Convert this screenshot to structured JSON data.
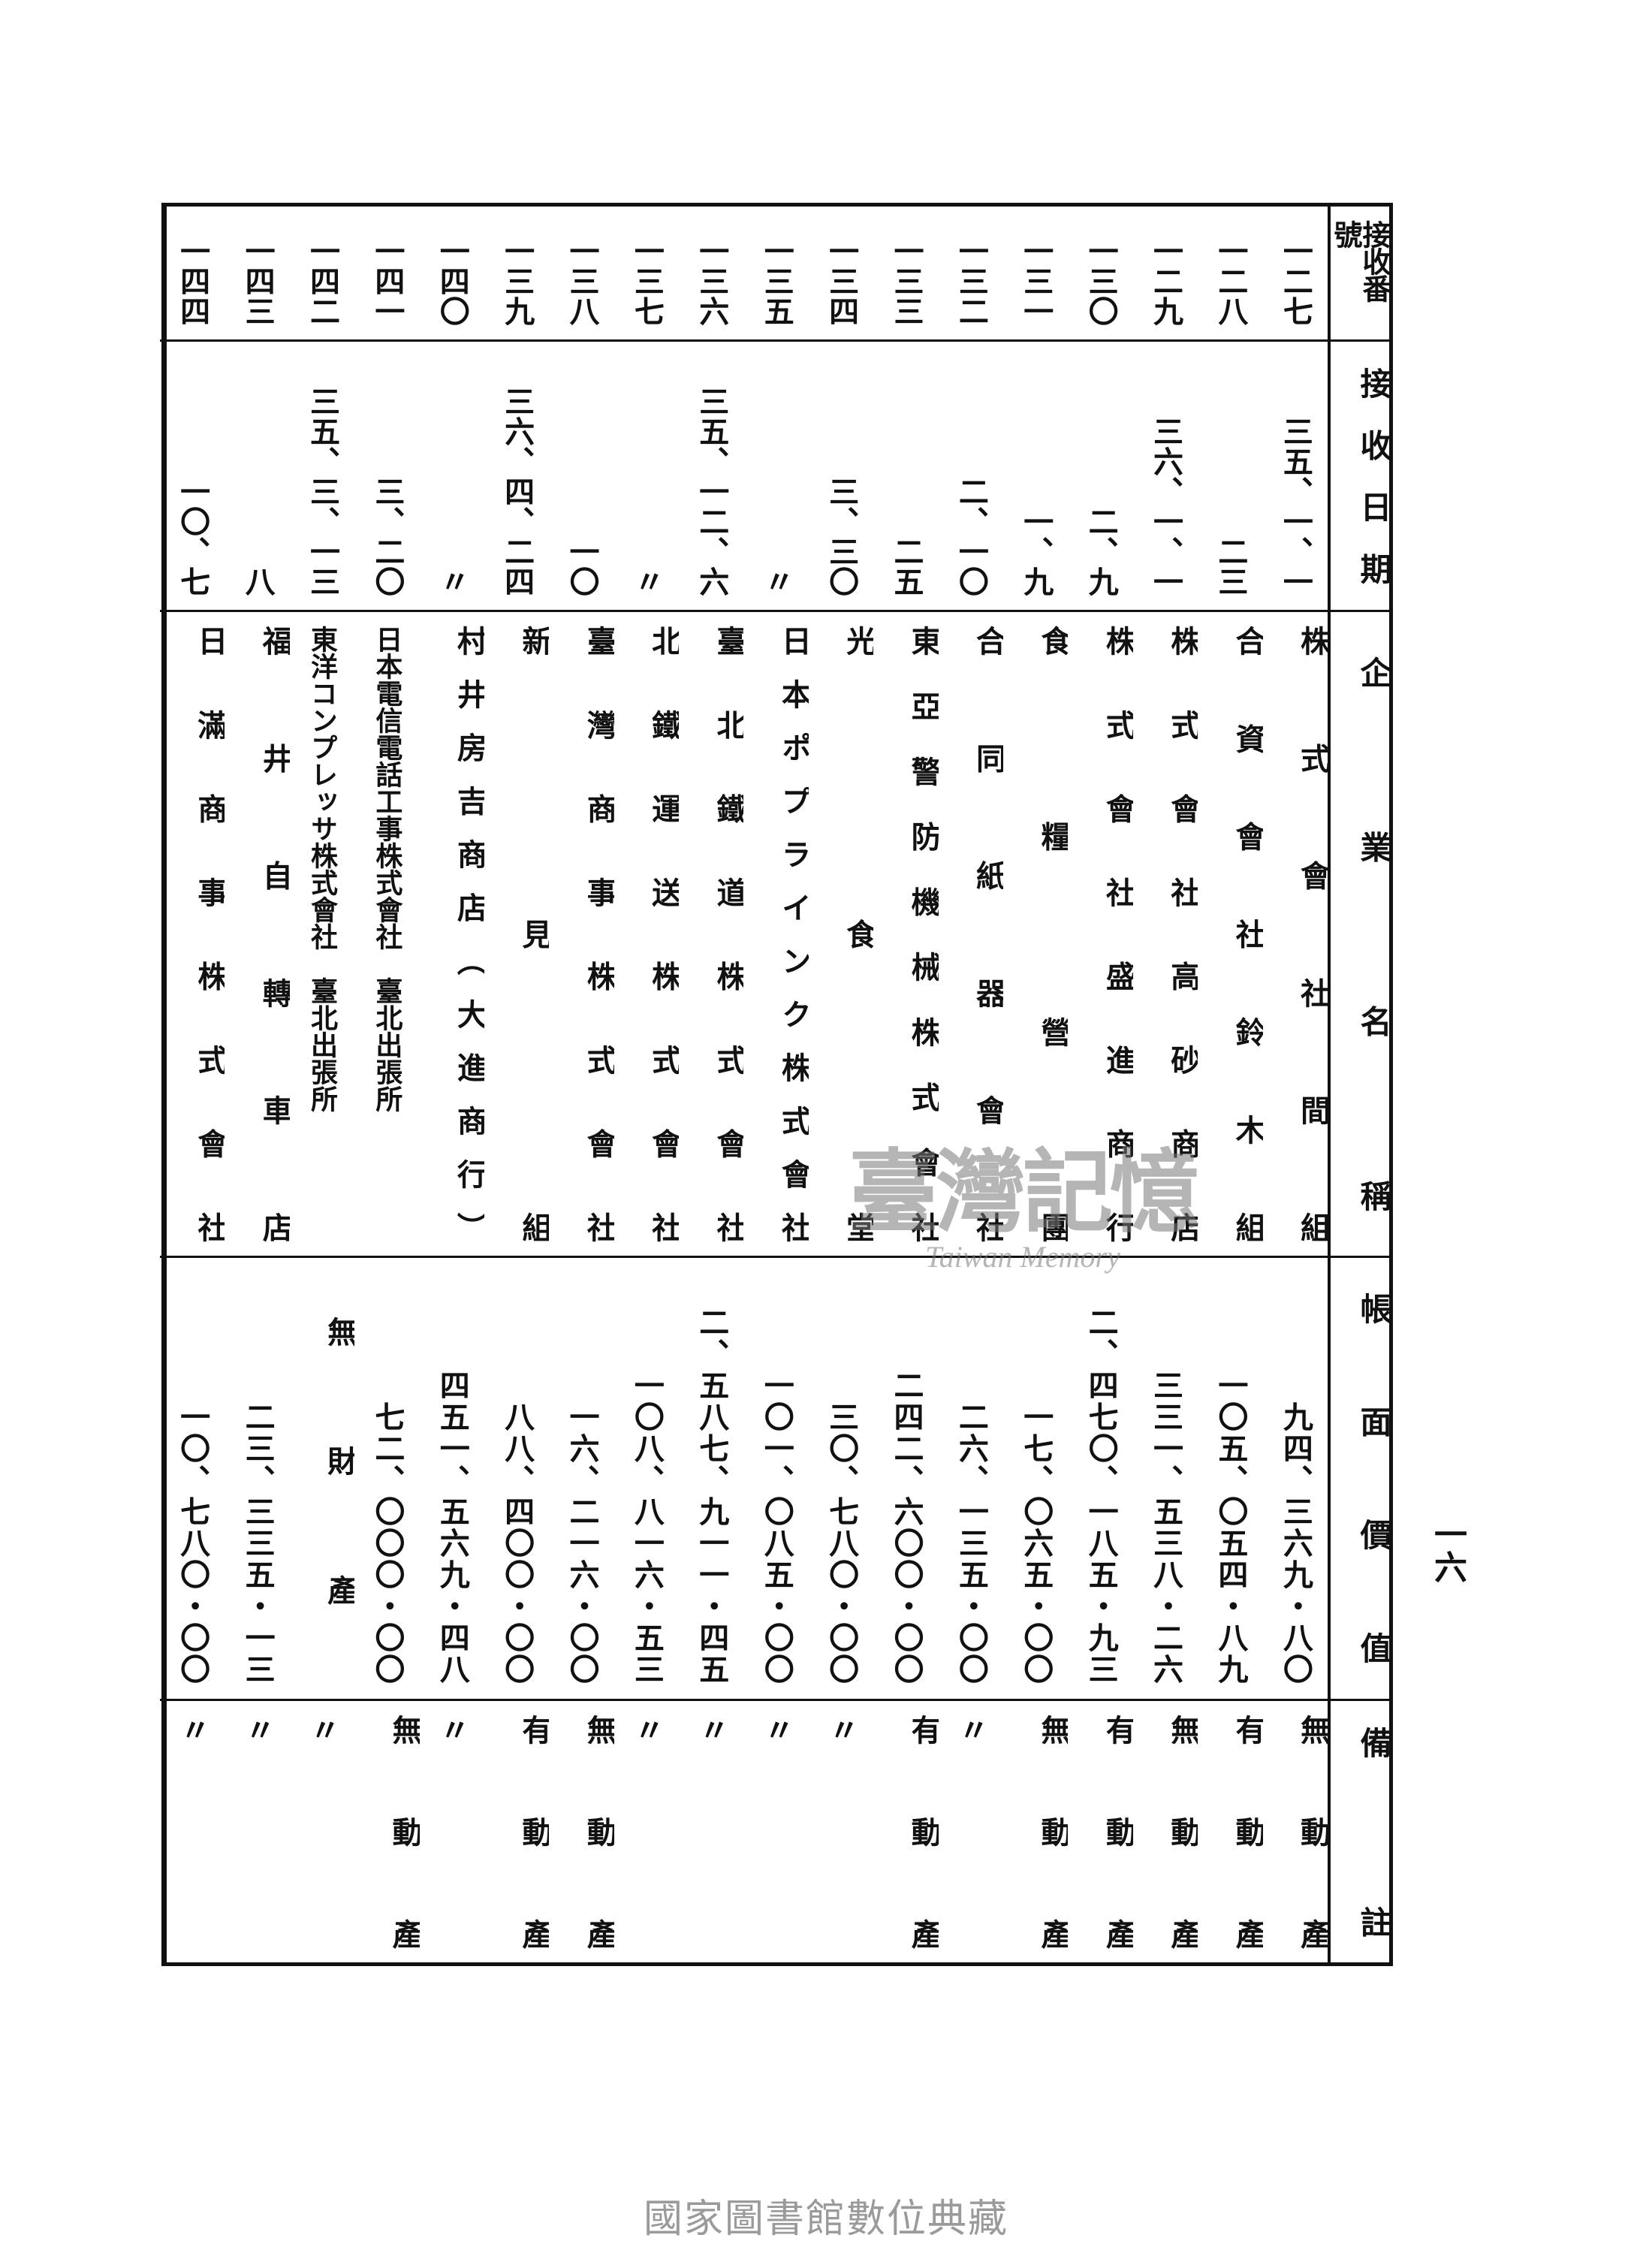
{
  "page_number": "一六",
  "headers": {
    "number": "接收番號",
    "date": "接收日期",
    "name": "企業名稱",
    "value": "帳面價值",
    "remarks": "備註"
  },
  "rows": [
    {
      "number": "一二七",
      "date": "三五、一、一",
      "name": "株式會社間組",
      "value": "九四、三六九・八〇",
      "remarks": "無動產"
    },
    {
      "number": "一二八",
      "date": "二三",
      "name": "合資會社鈴木組",
      "value": "一〇五、〇五四・八九",
      "remarks": "有動產"
    },
    {
      "number": "一二九",
      "date": "三六、一、一",
      "name": "株式會社高砂商店",
      "value": "三三一、五三八・二六",
      "remarks": "無動產"
    },
    {
      "number": "一三〇",
      "date": "二、九",
      "name": "株式會社盛進商行",
      "value": "二、四七〇、一八五・九三",
      "remarks": "有動產"
    },
    {
      "number": "一三一",
      "date": "一、九",
      "name": "食糧營團",
      "value": "一七、〇六五・〇〇",
      "remarks": "無動產"
    },
    {
      "number": "一三二",
      "date": "二、一〇",
      "name": "合同紙器會社",
      "value": "二六、一三五・〇〇",
      "remarks": "〃"
    },
    {
      "number": "一三三",
      "date": "二五",
      "name": "東亞警防機械株式會社",
      "value": "二四二、六〇〇・〇〇",
      "remarks": "有動產"
    },
    {
      "number": "一三四",
      "date": "三、三〇",
      "name": "光食堂",
      "value": "三〇、七八〇・〇〇",
      "remarks": "〃"
    },
    {
      "number": "一三五",
      "date": "〃",
      "name": "日本ポプラインク株式會社",
      "value": "一〇一、〇八五・〇〇",
      "remarks": "〃"
    },
    {
      "number": "一三六",
      "date": "三五、一二、六",
      "name": "臺北鐵道株式會社",
      "value": "二、五八七、九一一・四五",
      "remarks": "〃"
    },
    {
      "number": "一三七",
      "date": "〃",
      "name": "北鐵運送株式會社",
      "value": "一〇八、八一六・五三",
      "remarks": "〃"
    },
    {
      "number": "一三八",
      "date": "一〇",
      "name": "臺灣商事株式會社",
      "value": "一六、二一六・〇〇",
      "remarks": "無動產"
    },
    {
      "number": "一三九",
      "date": "三六、四、二四",
      "name": "新見組",
      "value": "八八、四〇〇・〇〇",
      "remarks": "有動產"
    },
    {
      "number": "一四〇",
      "date": "〃",
      "name": "村井房吉商店（大進商行）",
      "value": "四五一、五六九・四八",
      "remarks": "〃"
    },
    {
      "number": "一四一",
      "date": "三、二〇",
      "name": "日本電信電話工事株式會社　臺北出張所",
      "value": "七二、〇〇〇・〇〇",
      "remarks": "無動產"
    },
    {
      "number": "一四二",
      "date": "三五、三、一三",
      "name": "東洋コンプレッサ株式會社　臺北出張所",
      "value": "無財產",
      "remarks": "〃"
    },
    {
      "number": "一四三",
      "date": "八",
      "name": "福井自轉車店",
      "value": "二三、三三五・一三",
      "remarks": "〃"
    },
    {
      "number": "一四四",
      "date": "一〇、七",
      "name": "日滿商事株式會社",
      "value": "一〇、七八〇・〇〇",
      "remarks": "〃"
    }
  ],
  "watermark": {
    "main": "臺灣記憶",
    "sub": "Taiwan Memory"
  },
  "footer": "國家圖書館數位典藏"
}
